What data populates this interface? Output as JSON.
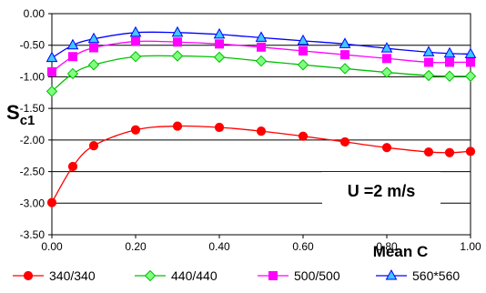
{
  "chart_data": {
    "type": "line",
    "xlabel": "Mean C",
    "ylabel_main": "S",
    "ylabel_sub": "c1",
    "annotation": "U =2 m/s",
    "xlim": [
      0,
      1
    ],
    "ylim": [
      -3.5,
      0
    ],
    "x_ticks": [
      "0.00",
      "0.20",
      "0.40",
      "0.60",
      "0.80",
      "1.00"
    ],
    "y_ticks": [
      "0.00",
      "-0.50",
      "-1.00",
      "-1.50",
      "-2.00",
      "-2.50",
      "-3.00",
      "-3.50"
    ],
    "grid": "horizontal",
    "legend_position": "bottom",
    "series": [
      {
        "name": "340/340",
        "color": "#ff0000",
        "marker": "circle",
        "x": [
          0.0,
          0.05,
          0.1,
          0.2,
          0.3,
          0.4,
          0.5,
          0.6,
          0.7,
          0.8,
          0.9,
          0.95,
          1.0
        ],
        "y": [
          -2.99,
          -2.42,
          -2.09,
          -1.84,
          -1.78,
          -1.8,
          -1.86,
          -1.94,
          -2.03,
          -2.12,
          -2.19,
          -2.2,
          -2.18
        ]
      },
      {
        "name": "440/440",
        "color": "#00c000",
        "marker": "diamond",
        "x": [
          0.0,
          0.05,
          0.1,
          0.2,
          0.3,
          0.4,
          0.5,
          0.6,
          0.7,
          0.8,
          0.9,
          0.95,
          1.0
        ],
        "y": [
          -1.23,
          -0.95,
          -0.81,
          -0.68,
          -0.67,
          -0.69,
          -0.75,
          -0.81,
          -0.87,
          -0.93,
          -0.98,
          -0.99,
          -0.99
        ]
      },
      {
        "name": "500/500",
        "color": "#ff00ff",
        "marker": "square",
        "x": [
          0.0,
          0.05,
          0.1,
          0.2,
          0.3,
          0.4,
          0.5,
          0.6,
          0.7,
          0.8,
          0.9,
          0.95,
          1.0
        ],
        "y": [
          -0.92,
          -0.68,
          -0.54,
          -0.44,
          -0.45,
          -0.48,
          -0.53,
          -0.59,
          -0.65,
          -0.71,
          -0.77,
          -0.77,
          -0.77
        ]
      },
      {
        "name": "560*560",
        "color": "#0000ff",
        "marker": "triangle",
        "x": [
          0.0,
          0.05,
          0.1,
          0.2,
          0.3,
          0.4,
          0.5,
          0.6,
          0.7,
          0.8,
          0.9,
          0.95,
          1.0
        ],
        "y": [
          -0.7,
          -0.5,
          -0.4,
          -0.3,
          -0.3,
          -0.33,
          -0.38,
          -0.43,
          -0.48,
          -0.55,
          -0.61,
          -0.63,
          -0.64
        ]
      }
    ]
  }
}
